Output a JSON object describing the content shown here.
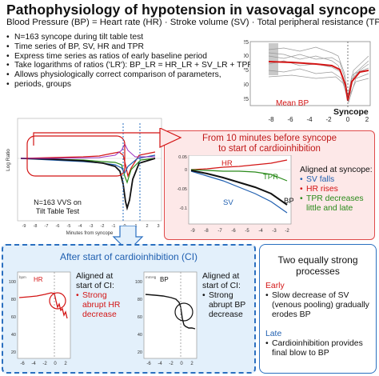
{
  "title": "Pathophysiology of hypotension in vasovagal syncope",
  "subtitle": "Blood Pressure (BP) = Heart rate (HR) · Stroke volume (SV) · Total peripheral resistance (TPR)",
  "bullets": [
    "N=163 syncope during tilt table test",
    "Time series of BP, SV, HR and TPR",
    "Express time series as ratios of early baseline period",
    "Take logarithms of ratios ('LR'): BP_LR = HR_LR + SV_LR + TPR_LR",
    "Allows physiologically correct comparison of parameters,",
    "periods, groups"
  ],
  "top_chart": {
    "y_ticks": [
      "125",
      "100",
      "75",
      "50",
      "25"
    ],
    "x_ticks": [
      "-8",
      "-6",
      "-4",
      "-2",
      "0",
      "2"
    ],
    "mean_bp_label": "Mean BP",
    "syncope_label": "Syncope"
  },
  "middle_chart": {
    "y_label": "Log Ratio",
    "x_label": "Minutes from syncope",
    "x_ticks": [
      "-9",
      "-8",
      "-7",
      "-6",
      "-5",
      "-4",
      "-3",
      "-2",
      "-1",
      "0",
      "1",
      "2",
      "3"
    ],
    "caption_line1": "N=163 VVS on",
    "caption_line2": "Tilt Table Test"
  },
  "red_box": {
    "heading_line1": "From 10 minutes before syncope",
    "heading_line2": "to start of cardioinhibition",
    "chart_y_ticks": [
      "0.05",
      "0",
      "-0.05",
      "-0.1"
    ],
    "chart_x_ticks": [
      "-9",
      "-8",
      "-7",
      "-6",
      "-5",
      "-4",
      "-3",
      "-2"
    ],
    "label_hr": "HR",
    "label_tpr": "TPR",
    "label_sv": "SV",
    "label_bp": "BP",
    "aligned_heading": "Aligned at syncope:",
    "items": [
      "SV falls",
      "HR rises",
      "TPR decreases little and late"
    ]
  },
  "blue_box": {
    "heading": "After start of cardioinhibition (CI)",
    "hr_chart": {
      "label": "HR",
      "unit": "bpm",
      "y_ticks": [
        "100",
        "80",
        "60",
        "40",
        "20"
      ],
      "x_ticks": [
        "-6",
        "-4",
        "-2",
        "0",
        "2"
      ]
    },
    "hr_text_heading": "Aligned at start of CI:",
    "hr_item": "Strong abrupt HR decrease",
    "bp_chart": {
      "label": "BP",
      "unit": "mmHg",
      "y_ticks": [
        "100",
        "80",
        "60",
        "40",
        "20"
      ],
      "x_ticks": [
        "-6",
        "-4",
        "-2",
        "0",
        "2"
      ]
    },
    "bp_text_heading": "Aligned at start of CI:",
    "bp_item": "Strong abrupt BP decrease"
  },
  "right_box": {
    "heading": "Two equally strong processes",
    "early_label": "Early",
    "early_item": "Slow decrease of SV (venous pooling) gradually erodes BP",
    "late_label": "Late",
    "late_item": "Cardioinhibition provides final blow to BP"
  },
  "colors": {
    "red": "#d31515",
    "blue": "#1f5fb0",
    "green": "#2a8a1a"
  }
}
